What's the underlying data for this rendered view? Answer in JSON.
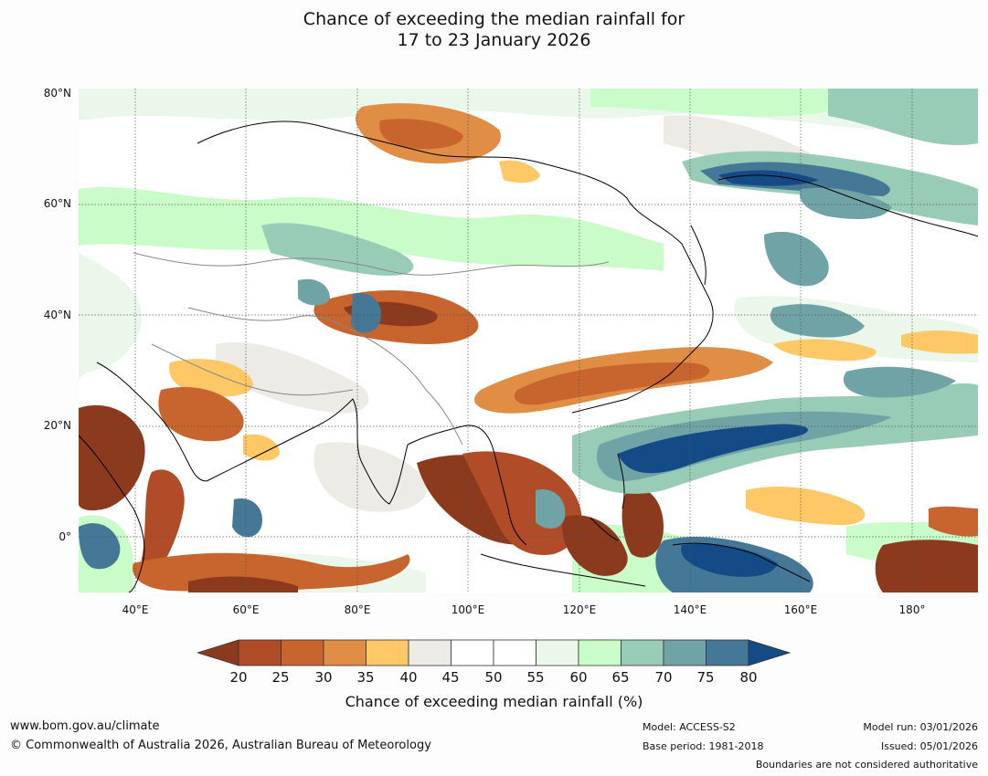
{
  "title_line1": "Chance of exceeding the median rainfall for",
  "title_line2": "17 to 23 January 2026",
  "lat_labels": [
    "80°N",
    "60°N",
    "40°N",
    "20°N",
    "0°"
  ],
  "lon_labels": [
    "40°E",
    "60°E",
    "80°E",
    "100°E",
    "120°E",
    "140°E",
    "160°E",
    "180°"
  ],
  "colorbar": {
    "ticks": [
      "20",
      "25",
      "30",
      "35",
      "40",
      "45",
      "50",
      "55",
      "60",
      "65",
      "70",
      "75",
      "80"
    ],
    "colors": [
      "#8b3a1e",
      "#b04c27",
      "#c8652f",
      "#e08e45",
      "#fdc865",
      "#ecebe5",
      "#ffffff",
      "#ffffff",
      "#eaf7ea",
      "#c9fcc9",
      "#99ccb6",
      "#6fa3a6",
      "#447896",
      "#144a86"
    ],
    "label": "Chance of exceeding median rainfall (%)"
  },
  "footer": {
    "website": "www.bom.gov.au/climate",
    "copyright": "© Commonwealth of Australia 2026, Australian Bureau of Meteorology",
    "model": "Model: ACCESS-S2",
    "base_period": "Base period: 1981-2018",
    "model_run": "Model run: 03/01/2026",
    "issued": "Issued: 05/01/2026",
    "disclaimer": "Boundaries are not considered authoritative"
  }
}
